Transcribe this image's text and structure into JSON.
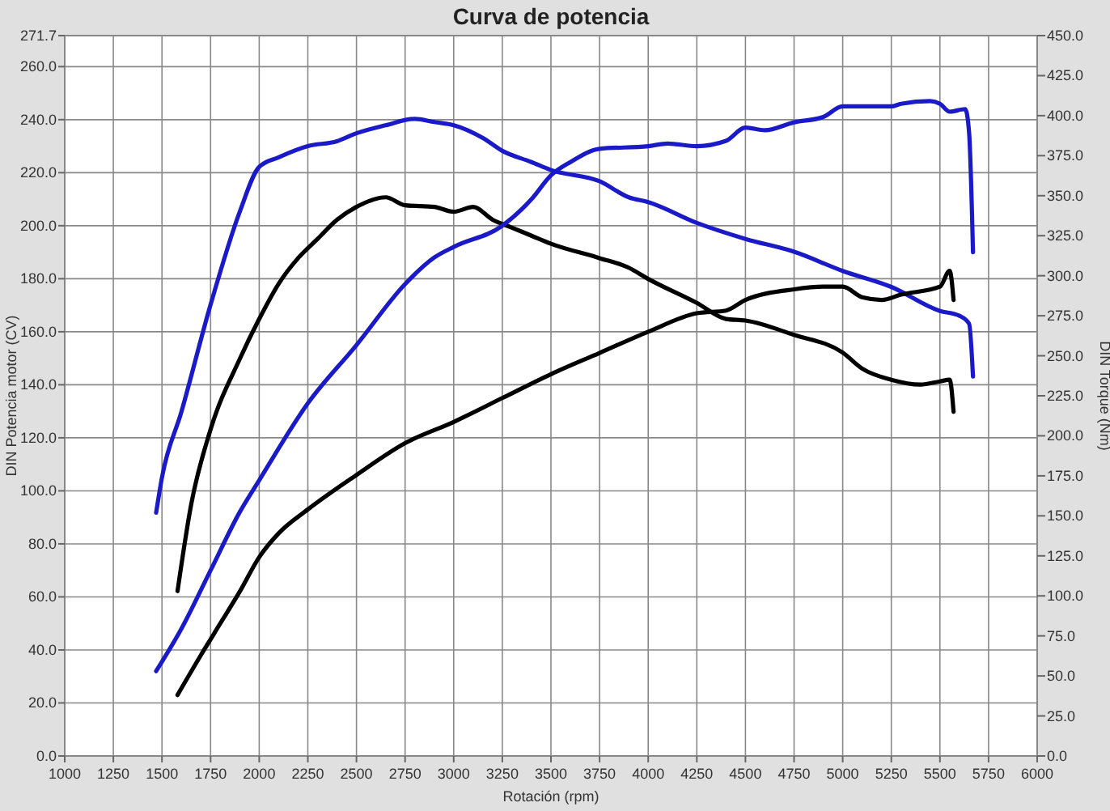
{
  "chart_data": {
    "type": "line",
    "title": "Curva de potencia",
    "xlabel": "Rotación (rpm)",
    "ylabel": "DIN Potencia motor (CV)",
    "y2label": "DIN Torque (Nm)",
    "xlim": [
      1000,
      6000
    ],
    "xticks": [
      1000,
      1250,
      1500,
      1750,
      2000,
      2250,
      2500,
      2750,
      3000,
      3250,
      3500,
      3750,
      4000,
      4250,
      4500,
      4750,
      5000,
      5250,
      5500,
      5750,
      6000
    ],
    "ylim": [
      0,
      271.7
    ],
    "yticks": [
      {
        "value": 0,
        "label": "0.0"
      },
      {
        "value": 20,
        "label": "20.0"
      },
      {
        "value": 40,
        "label": "40.0"
      },
      {
        "value": 60,
        "label": "60.0"
      },
      {
        "value": 80,
        "label": "80.0"
      },
      {
        "value": 100,
        "label": "100.0"
      },
      {
        "value": 120,
        "label": "120.0"
      },
      {
        "value": 140,
        "label": "140.0"
      },
      {
        "value": 160,
        "label": "160.0"
      },
      {
        "value": 180,
        "label": "180.0"
      },
      {
        "value": 200,
        "label": "200.0"
      },
      {
        "value": 220,
        "label": "220.0"
      },
      {
        "value": 240,
        "label": "240.0"
      },
      {
        "value": 260,
        "label": "260.0"
      },
      271.7
    ],
    "y2lim": [
      0,
      450
    ],
    "y2ticks": [
      {
        "value": 0,
        "label": "0.0"
      },
      {
        "value": 25,
        "label": "25.0"
      },
      {
        "value": 50,
        "label": "50.0"
      },
      {
        "value": 75,
        "label": "75.0"
      },
      {
        "value": 100,
        "label": "100.0"
      },
      {
        "value": 125,
        "label": "125.0"
      },
      {
        "value": 150,
        "label": "150.0"
      },
      {
        "value": 175,
        "label": "175.0"
      },
      {
        "value": 200,
        "label": "200.0"
      },
      {
        "value": 225,
        "label": "225.0"
      },
      {
        "value": 250,
        "label": "250.0"
      },
      {
        "value": 275,
        "label": "275.0"
      },
      {
        "value": 300,
        "label": "300.0"
      },
      {
        "value": 325,
        "label": "325.0"
      },
      {
        "value": 350,
        "label": "350.0"
      },
      {
        "value": 375,
        "label": "375.0"
      },
      {
        "value": 400,
        "label": "400.0"
      },
      {
        "value": 425,
        "label": "425.0"
      },
      {
        "value": 450,
        "label": "450.0"
      }
    ],
    "grid": true,
    "line_style": "solid",
    "series": [
      {
        "color": "#1a1ac8",
        "axis": "y2",
        "x": [
          1470,
          1500,
          1600,
          1750,
          1900,
          2000,
          2100,
          2250,
          2400,
          2500,
          2650,
          2800,
          2900,
          3000,
          3150,
          3250,
          3400,
          3500,
          3750,
          3900,
          4000,
          4250,
          4500,
          4750,
          5000,
          5250,
          5500,
          5600,
          5650,
          5670
        ],
        "values": [
          152,
          174,
          215,
          282,
          340,
          368,
          374,
          381,
          384,
          389,
          394,
          398,
          396,
          394,
          386,
          378,
          371,
          366,
          359,
          349,
          346,
          333,
          323,
          315,
          303,
          293,
          278,
          275,
          270,
          237
        ]
      },
      {
        "color": "#000000",
        "axis": "y2",
        "x": [
          1580,
          1650,
          1750,
          1900,
          2000,
          2100,
          2200,
          2300,
          2400,
          2500,
          2650,
          2750,
          2900,
          3000,
          3100,
          3200,
          3300,
          3400,
          3500,
          3750,
          3900,
          4000,
          4250,
          4400,
          4500,
          4750,
          5000,
          5100,
          5250,
          5400,
          5500,
          5550,
          5570
        ],
        "values": [
          103,
          157,
          204,
          248,
          273,
          295,
          311,
          323,
          335,
          343,
          349,
          344,
          343,
          340,
          343,
          335,
          330,
          325,
          320,
          311,
          305,
          298,
          283,
          273,
          272,
          263,
          252,
          242,
          235,
          232,
          234,
          235,
          215
        ]
      },
      {
        "color": "#1a1ac8",
        "x": [
          1470,
          1600,
          1750,
          1900,
          2000,
          2250,
          2500,
          2750,
          2900,
          3000,
          3250,
          3400,
          3500,
          3600,
          3750,
          4000,
          4100,
          4250,
          4400,
          4500,
          4600,
          4750,
          4900,
          5000,
          5250,
          5300,
          5450,
          5500,
          5550,
          5630,
          5650,
          5670
        ],
        "values": [
          32,
          48,
          70,
          92,
          104,
          133,
          155,
          178,
          188,
          192,
          200,
          210,
          219,
          224,
          229,
          230,
          231,
          230,
          232,
          237,
          236,
          239,
          241,
          245,
          245,
          246,
          247,
          246,
          243,
          244,
          235,
          190
        ]
      },
      {
        "color": "#000000",
        "x": [
          1580,
          1700,
          1800,
          1900,
          2000,
          2100,
          2250,
          2500,
          2750,
          3000,
          3250,
          3500,
          3750,
          4000,
          4250,
          4400,
          4500,
          4750,
          4900,
          5000,
          5100,
          5200,
          5300,
          5500,
          5550,
          5570
        ],
        "values": [
          23,
          38,
          50,
          62,
          75,
          84,
          93,
          106,
          118,
          126,
          135,
          144,
          152,
          160,
          167,
          168,
          172,
          176,
          177,
          177,
          173,
          172,
          174,
          177,
          183,
          172
        ]
      }
    ]
  }
}
